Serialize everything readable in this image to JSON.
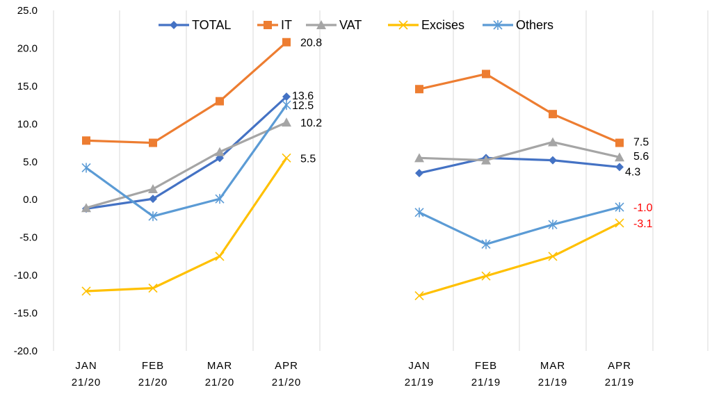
{
  "chart_data": {
    "type": "line",
    "ylim": [
      -20,
      25
    ],
    "yticks": [
      "25.0",
      "20.0",
      "15.0",
      "10.0",
      "5.0",
      "0.0",
      "-5.0",
      "-10.0",
      "-15.0",
      "-20.0"
    ],
    "ytick_values": [
      25,
      20,
      15,
      10,
      5,
      0,
      -5,
      -10,
      -15,
      -20
    ],
    "grid": "vertical",
    "legend_position": "top",
    "groups": [
      {
        "categories": [
          {
            "line1": "JAN",
            "line2": "21/20"
          },
          {
            "line1": "FEB",
            "line2": "21/20"
          },
          {
            "line1": "MAR",
            "line2": "21/20"
          },
          {
            "line1": "APR",
            "line2": "21/20"
          }
        ]
      },
      {
        "categories": [
          {
            "line1": "JAN",
            "line2": "21/19"
          },
          {
            "line1": "FEB",
            "line2": "21/19"
          },
          {
            "line1": "MAR",
            "line2": "21/19"
          },
          {
            "line1": "APR",
            "line2": "21/19"
          }
        ]
      }
    ],
    "series": [
      {
        "name": "TOTAL",
        "color": "#4472c4",
        "marker": "diamond",
        "values": [
          [
            -1.2,
            0.1,
            5.5,
            13.6
          ],
          [
            3.5,
            5.5,
            5.2,
            4.3
          ]
        ],
        "end_labels": [
          "13.6",
          "4.3"
        ],
        "label_color": "#000000"
      },
      {
        "name": "IT",
        "color": "#ed7d31",
        "marker": "square",
        "values": [
          [
            7.8,
            7.5,
            13.0,
            20.8
          ],
          [
            14.6,
            16.6,
            11.3,
            7.5
          ]
        ],
        "end_labels": [
          "20.8",
          "7.5"
        ],
        "label_color": "#000000"
      },
      {
        "name": "VAT",
        "color": "#a5a5a5",
        "marker": "triangle",
        "values": [
          [
            -1.1,
            1.4,
            6.3,
            10.2
          ],
          [
            5.5,
            5.2,
            7.6,
            5.6
          ]
        ],
        "end_labels": [
          "10.2",
          "5.6"
        ],
        "label_color": "#000000"
      },
      {
        "name": "Excises",
        "color": "#ffc000",
        "marker": "x",
        "values": [
          [
            -12.1,
            -11.7,
            -7.5,
            5.5
          ],
          [
            -12.7,
            -10.1,
            -7.5,
            -3.1
          ]
        ],
        "end_labels": [
          "5.5",
          "-3.1"
        ],
        "label_color": "#000000",
        "label_color_group2": "#ff0000"
      },
      {
        "name": "Others",
        "color": "#5b9bd5",
        "marker": "star",
        "values": [
          [
            4.2,
            -2.2,
            0.1,
            12.5
          ],
          [
            -1.7,
            -5.9,
            -3.3,
            -1.0
          ]
        ],
        "end_labels": [
          "12.5",
          "-1.0"
        ],
        "label_color": "#000000",
        "label_color_group2": "#ff0000"
      }
    ]
  }
}
